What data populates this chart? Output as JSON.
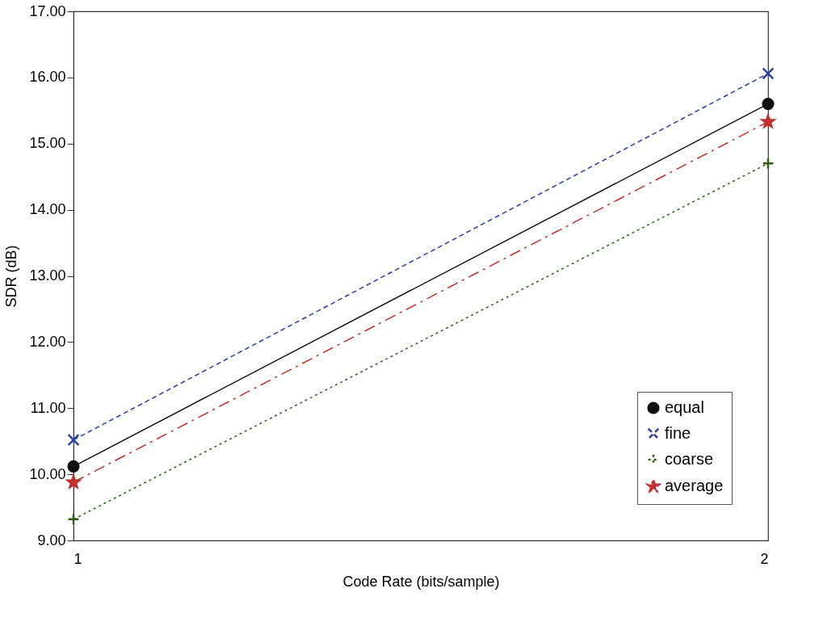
{
  "chart_data": {
    "type": "line",
    "xlabel": "Code Rate (bits/sample)",
    "ylabel": "SDR (dB)",
    "x": [
      1,
      2
    ],
    "xlim": [
      1,
      2
    ],
    "xticks": [
      1,
      2
    ],
    "ylim": [
      9,
      17
    ],
    "yticks": [
      {
        "value": 9,
        "label": "9.00"
      },
      {
        "value": 10,
        "label": "10.00"
      },
      {
        "value": 11,
        "label": "11.00"
      },
      {
        "value": 12,
        "label": "12.00"
      },
      {
        "value": 13,
        "label": "13.00"
      },
      {
        "value": 14,
        "label": "14.00"
      },
      {
        "value": 15,
        "label": "15.00"
      },
      {
        "value": 16,
        "label": "16.00"
      },
      {
        "value": 17,
        "label": "17.00"
      }
    ],
    "grid": false,
    "legend": "bottom right",
    "series": [
      {
        "name": "equal",
        "color": "#111111",
        "values": [
          10.12,
          15.6
        ],
        "marker": "circle",
        "line_style": "solid"
      },
      {
        "name": "fine",
        "color": "#2b3f9e",
        "values": [
          10.52,
          16.06
        ],
        "marker": "cross",
        "line_style": "dashed"
      },
      {
        "name": "coarse",
        "color": "#2f5e1e",
        "values": [
          9.32,
          14.7
        ],
        "marker": "plus",
        "line_style": "dotted"
      },
      {
        "name": "average",
        "color": "#c0302f",
        "values": [
          9.88,
          15.33
        ],
        "marker": "star",
        "line_style": "dashdot"
      }
    ]
  }
}
